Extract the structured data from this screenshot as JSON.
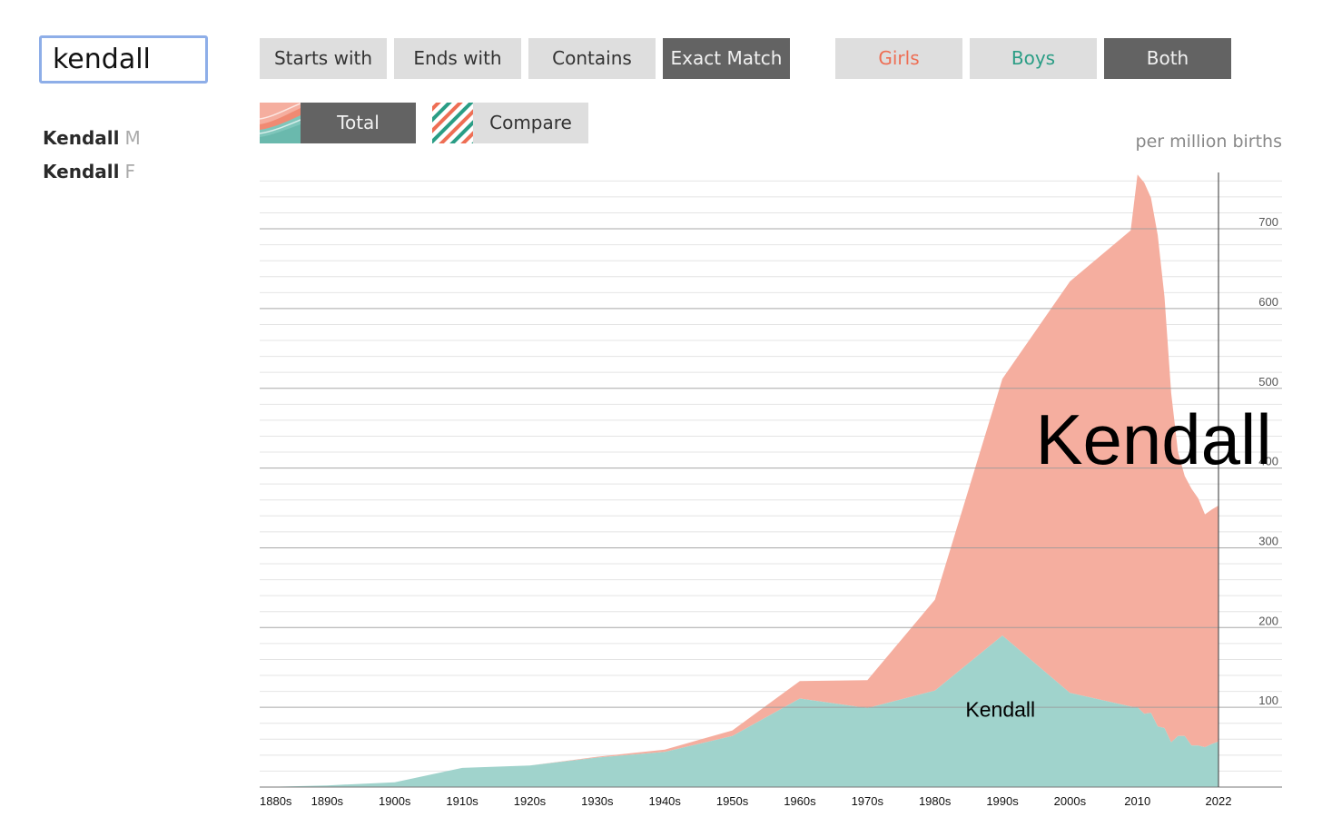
{
  "search": {
    "value": "kendall"
  },
  "results": [
    {
      "name": "Kendall",
      "sex": "M"
    },
    {
      "name": "Kendall",
      "sex": "F"
    }
  ],
  "match_buttons": [
    "Starts with",
    "Ends with",
    "Contains",
    "Exact Match"
  ],
  "match_active": "Exact Match",
  "sex_buttons": {
    "girls": "Girls",
    "boys": "Boys",
    "both": "Both"
  },
  "view_buttons": {
    "total": "Total",
    "compare": "Compare"
  },
  "colors": {
    "girls": "#f5ae9f",
    "boys": "#a0d3cc",
    "girls_text": "#ee6e54",
    "boys_text": "#2a9d85",
    "active": "#636363"
  },
  "chart_data": {
    "type": "area",
    "stacked": true,
    "unit": "per million births",
    "x": [
      1880,
      1890,
      1900,
      1910,
      1920,
      1930,
      1940,
      1950,
      1960,
      1970,
      1980,
      1990,
      2000,
      2009,
      2010,
      2011,
      2012,
      2013,
      2014,
      2015,
      2016,
      2017,
      2018,
      2019,
      2020,
      2021,
      2022
    ],
    "xlim": [
      1880,
      2022
    ],
    "ylim": [
      0,
      760
    ],
    "yticks": [
      100,
      200,
      300,
      400,
      500,
      600,
      700
    ],
    "xticks": [
      {
        "x": 1880,
        "label": "1880s"
      },
      {
        "x": 1890,
        "label": "1890s"
      },
      {
        "x": 1900,
        "label": "1900s"
      },
      {
        "x": 1910,
        "label": "1910s"
      },
      {
        "x": 1920,
        "label": "1920s"
      },
      {
        "x": 1930,
        "label": "1930s"
      },
      {
        "x": 1940,
        "label": "1940s"
      },
      {
        "x": 1950,
        "label": "1950s"
      },
      {
        "x": 1960,
        "label": "1960s"
      },
      {
        "x": 1970,
        "label": "1970s"
      },
      {
        "x": 1980,
        "label": "1980s"
      },
      {
        "x": 1990,
        "label": "1990s"
      },
      {
        "x": 2000,
        "label": "2000s"
      },
      {
        "x": 2010,
        "label": "2010"
      },
      {
        "x": 2022,
        "label": "2022"
      }
    ],
    "series": [
      {
        "name": "Kendall",
        "sex": "M",
        "values": [
          0,
          2,
          6,
          24,
          27,
          37,
          44,
          64,
          111,
          99,
          121,
          190,
          118,
          101,
          100,
          92,
          93,
          76,
          74,
          56,
          64,
          64,
          52,
          52,
          50,
          54,
          57
        ]
      },
      {
        "name": "Kendall",
        "sex": "F",
        "values": [
          0,
          0,
          0,
          0,
          0,
          1,
          3,
          7,
          22,
          35,
          114,
          322,
          516,
          597,
          668,
          666,
          646,
          616,
          541,
          438,
          356,
          326,
          322,
          310,
          292,
          294,
          296
        ]
      }
    ],
    "annotations": [
      {
        "label": "Kendall",
        "sex": "F",
        "x": 2012.4,
        "y": 405
      },
      {
        "label": "Kendall",
        "sex": "M",
        "x": 1989.7,
        "y": 88
      }
    ]
  }
}
